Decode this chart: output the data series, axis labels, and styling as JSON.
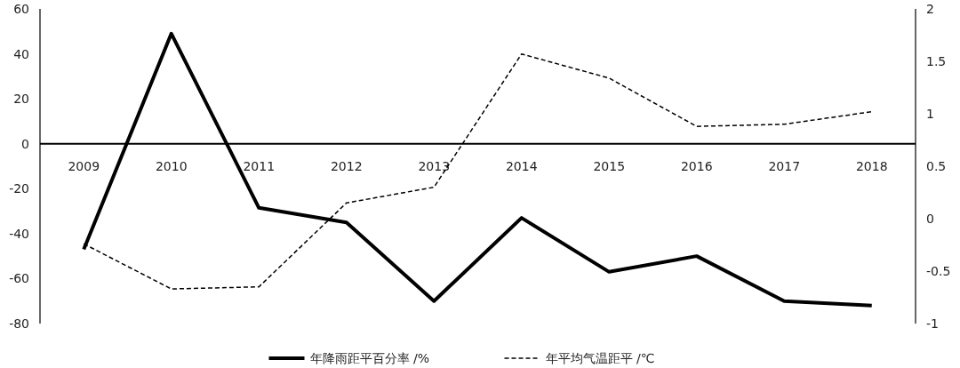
{
  "chart_data": {
    "type": "line",
    "categories": [
      "2009",
      "2010",
      "2011",
      "2012",
      "2013",
      "2014",
      "2015",
      "2016",
      "2017",
      "2018"
    ],
    "series": [
      {
        "name": "年降雨距平百分率 /%",
        "color": "#000000",
        "line_style": "solid",
        "values": [
          -47,
          49,
          -28.5,
          -35,
          -70,
          -33,
          -57,
          -50,
          -70,
          -72
        ]
      },
      {
        "name": "年平均气温距平 /℃",
        "color": "#000000",
        "line_style": "dashed",
        "axis": "y2",
        "values": [
          -0.24,
          -0.67,
          -0.65,
          0.15,
          0.3,
          1.57,
          1.34,
          0.88,
          0.9,
          1.02
        ]
      }
    ],
    "ylim": [
      -80,
      60
    ],
    "yticks": [
      -80,
      -60,
      -40,
      -20,
      0,
      20,
      40,
      60
    ],
    "y2lim": [
      -1,
      2
    ],
    "y2ticks": [
      -1,
      -0.5,
      0,
      0.5,
      1,
      1.5,
      2
    ],
    "legend": "bottom"
  }
}
